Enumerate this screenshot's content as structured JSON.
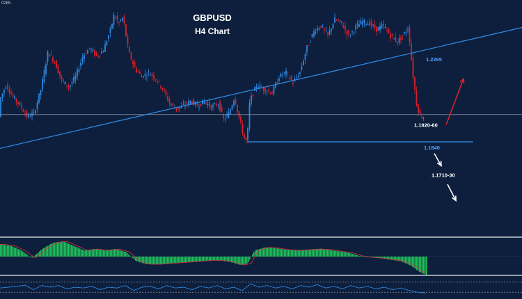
{
  "chart_data": {
    "type": "candlestick",
    "symbol": "GBPUSD",
    "title": "GBPUSD",
    "subtitle": "H4 Chart",
    "corner_label": "0285",
    "colors": {
      "background": "#0d1f3c",
      "bull": "#2f86e0",
      "bear": "#d8202c",
      "trendline": "#2f86e0",
      "support": "#2f86e0",
      "level_text": "#4da3ff",
      "label_text": "#ffffff",
      "up_arrow": "#d8202c",
      "down_arrow": "#ffffff",
      "hist_pos": "#1fbf5a",
      "hist_neg": "#1fbf5a",
      "separator": "#c8ccd4",
      "osc_line": "#2f86e0",
      "osc_level": "#b0b6c0"
    },
    "price_path": [
      [
        0,
        1.206
      ],
      [
        10,
        1.214
      ],
      [
        20,
        1.208
      ],
      [
        30,
        1.204
      ],
      [
        40,
        1.1985
      ],
      [
        50,
        1.2
      ],
      [
        60,
        1.212
      ],
      [
        70,
        1.23
      ],
      [
        80,
        1.225
      ],
      [
        90,
        1.216
      ],
      [
        100,
        1.213
      ],
      [
        110,
        1.218
      ],
      [
        120,
        1.228
      ],
      [
        130,
        1.232
      ],
      [
        140,
        1.228
      ],
      [
        150,
        1.231
      ],
      [
        160,
        1.241
      ],
      [
        165,
        1.248
      ],
      [
        172,
        1.244
      ],
      [
        178,
        1.247
      ],
      [
        186,
        1.23
      ],
      [
        195,
        1.222
      ],
      [
        205,
        1.218
      ],
      [
        215,
        1.22
      ],
      [
        225,
        1.217
      ],
      [
        235,
        1.212
      ],
      [
        245,
        1.205
      ],
      [
        255,
        1.202
      ],
      [
        265,
        1.204
      ],
      [
        275,
        1.206
      ],
      [
        285,
        1.204
      ],
      [
        295,
        1.206
      ],
      [
        305,
        1.203
      ],
      [
        315,
        1.205
      ],
      [
        322,
        1.197
      ],
      [
        330,
        1.2
      ],
      [
        338,
        1.208
      ],
      [
        346,
        1.196
      ],
      [
        352,
        1.188
      ],
      [
        356,
        1.186
      ],
      [
        360,
        1.206
      ],
      [
        370,
        1.214
      ],
      [
        380,
        1.212
      ],
      [
        392,
        1.21
      ],
      [
        402,
        1.218
      ],
      [
        412,
        1.22
      ],
      [
        422,
        1.215
      ],
      [
        432,
        1.22
      ],
      [
        442,
        1.232
      ],
      [
        452,
        1.24
      ],
      [
        462,
        1.243
      ],
      [
        472,
        1.238
      ],
      [
        482,
        1.246
      ],
      [
        492,
        1.244
      ],
      [
        502,
        1.238
      ],
      [
        512,
        1.242
      ],
      [
        522,
        1.245
      ],
      [
        532,
        1.244
      ],
      [
        542,
        1.241
      ],
      [
        552,
        1.243
      ],
      [
        562,
        1.238
      ],
      [
        572,
        1.235
      ],
      [
        580,
        1.238
      ],
      [
        588,
        1.242
      ],
      [
        594,
        1.22
      ],
      [
        600,
        1.204
      ],
      [
        605,
        1.199
      ],
      [
        610,
        1.1985
      ]
    ],
    "current_price": 1.1995,
    "trendline": {
      "from": [
        0,
        1.183
      ],
      "to": [
        750,
        1.242
      ]
    },
    "support": {
      "price": 1.1862,
      "from_x": 355,
      "to_x": 680
    },
    "annotations": [
      {
        "text": "1.2265",
        "anchor_x": 612,
        "price": 1.2255,
        "style": "level"
      },
      {
        "text": "1.1920-60",
        "anchor_x": 595,
        "price": 1.1935,
        "style": "label"
      },
      {
        "text": "1.1840",
        "anchor_x": 609,
        "price": 1.1825,
        "style": "level"
      },
      {
        "text": "1.1710-30",
        "anchor_x": 620,
        "price": 1.169,
        "style": "label"
      }
    ],
    "arrows": [
      {
        "direction": "up",
        "from": [
          641,
          1.1945
        ],
        "to": [
          666,
          1.217
        ]
      },
      {
        "direction": "down",
        "from": [
          624,
          1.1805
        ],
        "to": [
          634,
          1.1745
        ]
      },
      {
        "direction": "down",
        "from": [
          643,
          1.1655
        ],
        "to": [
          655,
          1.1575
        ]
      }
    ],
    "histogram": [
      [
        0,
        0.8
      ],
      [
        15,
        0.7
      ],
      [
        30,
        0.4
      ],
      [
        45,
        -0.1
      ],
      [
        60,
        0.5
      ],
      [
        75,
        0.9
      ],
      [
        90,
        1.0
      ],
      [
        105,
        0.7
      ],
      [
        120,
        0.4
      ],
      [
        135,
        0.5
      ],
      [
        150,
        0.4
      ],
      [
        165,
        0.5
      ],
      [
        180,
        0.3
      ],
      [
        195,
        -0.3
      ],
      [
        210,
        -0.5
      ],
      [
        225,
        -0.5
      ],
      [
        240,
        -0.45
      ],
      [
        255,
        -0.4
      ],
      [
        270,
        -0.35
      ],
      [
        285,
        -0.3
      ],
      [
        300,
        -0.25
      ],
      [
        315,
        -0.25
      ],
      [
        330,
        -0.35
      ],
      [
        345,
        -0.55
      ],
      [
        355,
        -0.45
      ],
      [
        365,
        0.4
      ],
      [
        380,
        0.6
      ],
      [
        395,
        0.55
      ],
      [
        410,
        0.45
      ],
      [
        425,
        0.4
      ],
      [
        440,
        0.45
      ],
      [
        455,
        0.5
      ],
      [
        470,
        0.45
      ],
      [
        485,
        0.35
      ],
      [
        500,
        0.25
      ],
      [
        515,
        0.05
      ],
      [
        530,
        -0.05
      ],
      [
        545,
        -0.1
      ],
      [
        560,
        -0.2
      ],
      [
        575,
        -0.3
      ],
      [
        590,
        -0.6
      ],
      [
        602,
        -1.0
      ],
      [
        612,
        -1.2
      ]
    ],
    "oscillator": [
      [
        0,
        0.45
      ],
      [
        12,
        0.5
      ],
      [
        24,
        0.55
      ],
      [
        36,
        0.62
      ],
      [
        48,
        0.35
      ],
      [
        60,
        0.6
      ],
      [
        72,
        0.5
      ],
      [
        84,
        0.6
      ],
      [
        96,
        0.4
      ],
      [
        108,
        0.5
      ],
      [
        120,
        0.45
      ],
      [
        132,
        0.55
      ],
      [
        144,
        0.35
      ],
      [
        156,
        0.5
      ],
      [
        168,
        0.45
      ],
      [
        180,
        0.6
      ],
      [
        192,
        0.3
      ],
      [
        204,
        0.5
      ],
      [
        216,
        0.55
      ],
      [
        228,
        0.4
      ],
      [
        240,
        0.6
      ],
      [
        252,
        0.45
      ],
      [
        264,
        0.5
      ],
      [
        276,
        0.35
      ],
      [
        288,
        0.55
      ],
      [
        300,
        0.45
      ],
      [
        312,
        0.6
      ],
      [
        324,
        0.4
      ],
      [
        336,
        0.5
      ],
      [
        348,
        0.3
      ],
      [
        360,
        0.7
      ],
      [
        372,
        0.5
      ],
      [
        384,
        0.6
      ],
      [
        396,
        0.45
      ],
      [
        408,
        0.55
      ],
      [
        420,
        0.4
      ],
      [
        432,
        0.6
      ],
      [
        444,
        0.5
      ],
      [
        456,
        0.65
      ],
      [
        468,
        0.45
      ],
      [
        480,
        0.55
      ],
      [
        492,
        0.4
      ],
      [
        504,
        0.6
      ],
      [
        516,
        0.45
      ],
      [
        528,
        0.55
      ],
      [
        540,
        0.4
      ],
      [
        552,
        0.5
      ],
      [
        564,
        0.35
      ],
      [
        576,
        0.45
      ],
      [
        588,
        0.3
      ],
      [
        600,
        0.2
      ],
      [
        612,
        0.15
      ]
    ],
    "oscillator_levels": [
      0.2,
      0.8
    ],
    "grid": false
  }
}
